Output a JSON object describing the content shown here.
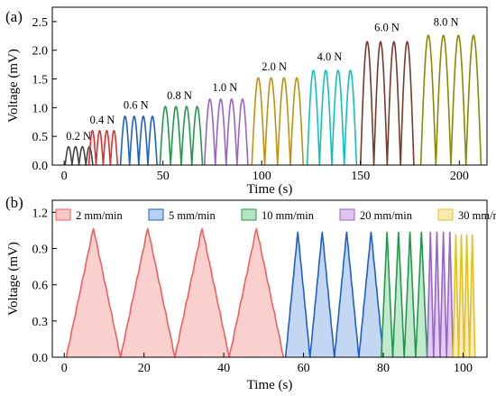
{
  "chart_data": [
    {
      "panel_label": "(a)",
      "type": "line",
      "xlabel": "Time (s)",
      "ylabel": "Voltage (mV)",
      "xlim": [
        -6,
        214
      ],
      "ylim": [
        0,
        2.75
      ],
      "xticks": [
        0,
        50,
        100,
        150,
        200
      ],
      "yticks": [
        0.0,
        0.5,
        1.0,
        1.5,
        2.0,
        2.5
      ],
      "ytick_labels": [
        "0.0",
        "0.5",
        "1.0",
        "1.5",
        "2.0",
        "2.5"
      ],
      "series": [
        {
          "label": "0.2 N",
          "color": "#444444",
          "peaks": [
            0.32,
            0.32,
            0.32,
            0.32
          ],
          "t_start": 0.5,
          "t_end": 14.5,
          "label_x": 1,
          "label_y": 0.44
        },
        {
          "label": "0.4 N",
          "color": "#e03030",
          "peaks": [
            0.6,
            0.6,
            0.6,
            0.6
          ],
          "t_start": 12.5,
          "t_end": 27,
          "label_x": 13,
          "label_y": 0.72
        },
        {
          "label": "0.6 N",
          "color": "#1f5fc8",
          "peaks": [
            0.85,
            0.85,
            0.85,
            0.85
          ],
          "t_start": 28.5,
          "t_end": 47,
          "label_x": 30,
          "label_y": 0.98
        },
        {
          "label": "0.8 N",
          "color": "#1f9a4a",
          "peaks": [
            1.02,
            1.02,
            1.02,
            1.02
          ],
          "t_start": 48.5,
          "t_end": 70,
          "label_x": 52,
          "label_y": 1.15
        },
        {
          "label": "1.0 N",
          "color": "#9a63c8",
          "peaks": [
            1.15,
            1.15,
            1.15,
            1.15
          ],
          "t_start": 71,
          "t_end": 93,
          "label_x": 75,
          "label_y": 1.29
        },
        {
          "label": "2.0 N",
          "color": "#c09010",
          "peaks": [
            1.52,
            1.52,
            1.52,
            1.52
          ],
          "t_start": 95,
          "t_end": 121,
          "label_x": 100,
          "label_y": 1.65
        },
        {
          "label": "4.0 N",
          "color": "#10c0c0",
          "peaks": [
            1.65,
            1.65,
            1.65,
            1.65
          ],
          "t_start": 123,
          "t_end": 148,
          "label_x": 128,
          "label_y": 1.82
        },
        {
          "label": "6.0 N",
          "color": "#7a3a2a",
          "peaks": [
            2.15,
            2.15,
            2.15,
            2.15
          ],
          "t_start": 150,
          "t_end": 177,
          "label_x": 157,
          "label_y": 2.33
        },
        {
          "label": "8.0 N",
          "color": "#8a8a00",
          "peaks": [
            2.26,
            2.26,
            2.26,
            2.26
          ],
          "t_start": 180.5,
          "t_end": 211,
          "label_x": 187,
          "label_y": 2.43
        }
      ]
    },
    {
      "panel_label": "(b)",
      "type": "area",
      "xlabel": "Time (s)",
      "ylabel": "Voltage (mV)",
      "xlim": [
        -3,
        106
      ],
      "ylim": [
        0,
        1.3
      ],
      "xticks": [
        0,
        20,
        40,
        60,
        80,
        100
      ],
      "yticks": [
        0.0,
        0.3,
        0.6,
        0.9,
        1.2
      ],
      "ytick_labels": [
        "0.0",
        "0.3",
        "0.6",
        "0.9",
        "1.2"
      ],
      "legend_position": "top",
      "series": [
        {
          "label": "2 mm/min",
          "color": "#f06060",
          "fill": "#f8c8c4",
          "peaks": [
            1.07,
            1.07,
            1.07,
            1.07
          ],
          "t_start": 0.5,
          "t_end": 55
        },
        {
          "label": "5 mm/min",
          "color": "#1f5fc8",
          "fill": "#b8d0f0",
          "peaks": [
            1.04,
            1.04,
            1.04,
            1.04
          ],
          "t_start": 55.5,
          "t_end": 80
        },
        {
          "label": "10 mm/min",
          "color": "#1f9a4a",
          "fill": "#b8e4c4",
          "peaks": [
            1.04,
            1.04,
            1.04,
            1.04
          ],
          "t_start": 79.5,
          "t_end": 91
        },
        {
          "label": "20 mm/min",
          "color": "#9a63c8",
          "fill": "#dcc4ec",
          "peaks": [
            1.04,
            1.04,
            1.04,
            1.04
          ],
          "t_start": 91,
          "t_end": 97.5
        },
        {
          "label": "30 mm/min",
          "color": "#e6c020",
          "fill": "#f6eab0",
          "peaks": [
            1.02,
            1.02,
            1.02,
            1.02
          ],
          "t_start": 97.5,
          "t_end": 103
        }
      ]
    }
  ]
}
